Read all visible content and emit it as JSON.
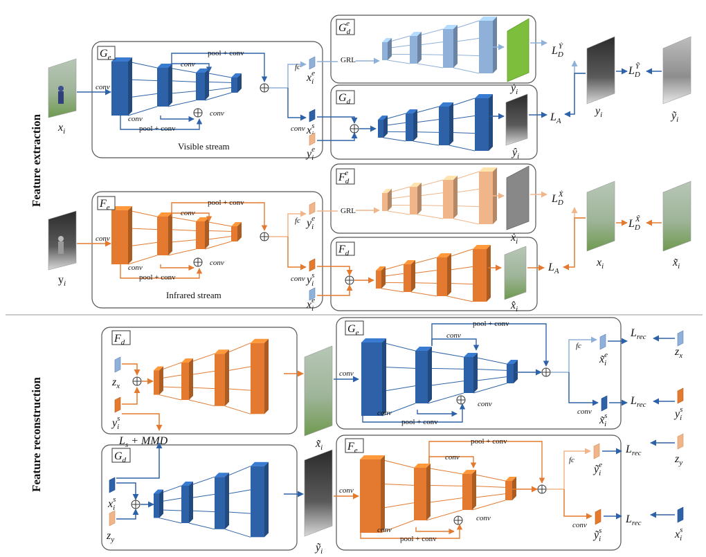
{
  "section_labels": {
    "top": "Feature extraction",
    "bottom": "Feature reconstruction"
  },
  "colors": {
    "blue": "#2E62A8",
    "blue_dark": "#1B4782",
    "light_blue": "#8FB0D9",
    "orange": "#E37A2F",
    "orange_dark": "#B85A18",
    "light_orange": "#F0B68A",
    "green": "#7DBE3C",
    "gray": "#888888"
  },
  "labels": {
    "conv": "conv",
    "pool_conv": "pool + conv",
    "fc": "fc",
    "grl": "GRL",
    "visible_stream": "Visible stream",
    "infrared_stream": "Infrared stream",
    "G_e": "G",
    "G_e_sub": "e",
    "G_d": "G",
    "G_d_sub": "d",
    "F_e": "F",
    "F_e_sub": "e",
    "F_d": "F",
    "F_d_sub": "d",
    "G_d_e_sup": "e",
    "F_d_e_sup": "e",
    "x_i": "x",
    "y_i": "y",
    "sub_i": "i",
    "x_tilde": "x̃",
    "y_tilde": "ỹ",
    "x_hat": "x̂",
    "y_hat": "ŷ",
    "x_dot": "ẋ",
    "y_dot": "ẏ",
    "sup_e": "e",
    "sup_s": "s",
    "z_x": "z",
    "z_x_sub": "x",
    "z_y": "z",
    "z_y_sub": "y",
    "L": "L",
    "L_A_sub": "A",
    "L_D_sub": "D",
    "L_D_Y_sup": "Ẏ",
    "L_D_Ytilde_sup": "Ỹ",
    "L_D_X_sup": "Ẋ",
    "L_D_Xtilde_sup": "X̃",
    "L_rec_sub": "rec",
    "Ls_MMD": "L",
    "Ls_MMD_sub": "s",
    "Ls_MMD_rest": " + MMD"
  }
}
